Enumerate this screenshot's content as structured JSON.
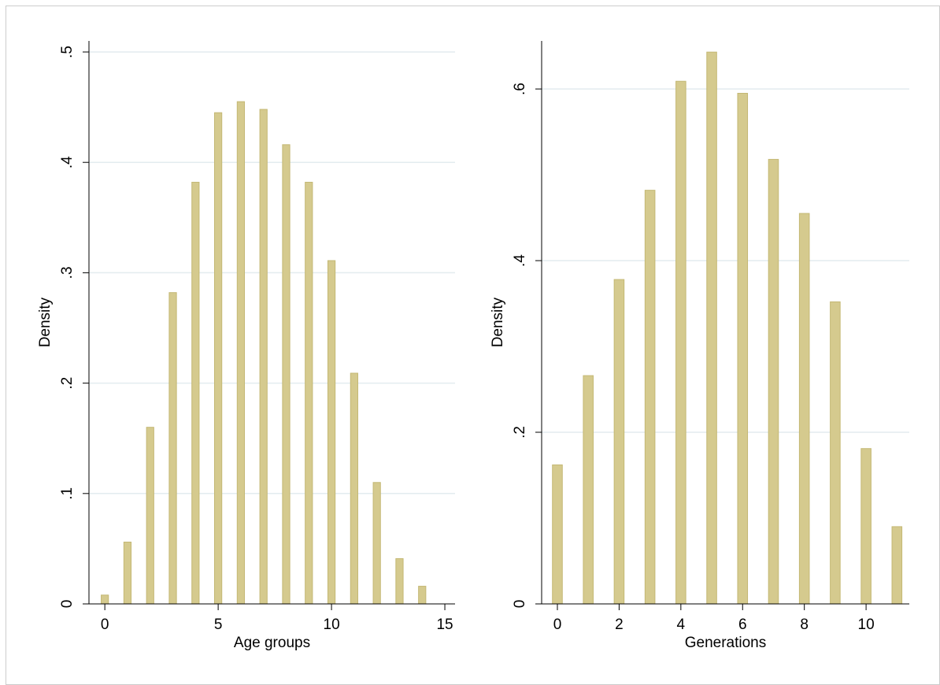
{
  "chart_data": [
    {
      "type": "bar",
      "xlabel": "Age groups",
      "ylabel": "Density",
      "x": [
        0,
        1,
        2,
        3,
        4,
        5,
        6,
        7,
        8,
        9,
        10,
        11,
        12,
        13,
        14
      ],
      "values": [
        0.008,
        0.056,
        0.16,
        0.282,
        0.382,
        0.445,
        0.455,
        0.448,
        0.416,
        0.382,
        0.311,
        0.209,
        0.11,
        0.041,
        0.016
      ],
      "color": "#d5ca8e",
      "xlim": [
        -0.7,
        15.45
      ],
      "ylim": [
        0,
        0.51
      ],
      "xticks": [
        0,
        5,
        10,
        15
      ],
      "yticks": [
        0,
        {
          "value": 0.1,
          "label": ".1"
        },
        {
          "value": 0.2,
          "label": ".2"
        },
        {
          "value": 0.3,
          "label": ".3"
        },
        {
          "value": 0.4,
          "label": ".4"
        },
        {
          "value": 0.5,
          "label": ".5"
        }
      ],
      "grid": true
    },
    {
      "type": "bar",
      "xlabel": "Generations",
      "ylabel": "Density",
      "x": [
        0,
        1,
        2,
        3,
        4,
        5,
        6,
        7,
        8,
        9,
        10,
        11
      ],
      "values": [
        0.162,
        0.266,
        0.378,
        0.482,
        0.609,
        0.643,
        0.595,
        0.518,
        0.455,
        0.352,
        0.181,
        0.09
      ],
      "color": "#d5ca8e",
      "xlim": [
        -0.51,
        11.4
      ],
      "ylim": [
        0,
        0.656
      ],
      "xticks": [
        0,
        2,
        4,
        6,
        8,
        10
      ],
      "yticks": [
        0,
        {
          "value": 0.2,
          "label": ".2"
        },
        {
          "value": 0.4,
          "label": ".4"
        },
        {
          "value": 0.6,
          "label": ".6"
        }
      ],
      "grid": true
    }
  ]
}
